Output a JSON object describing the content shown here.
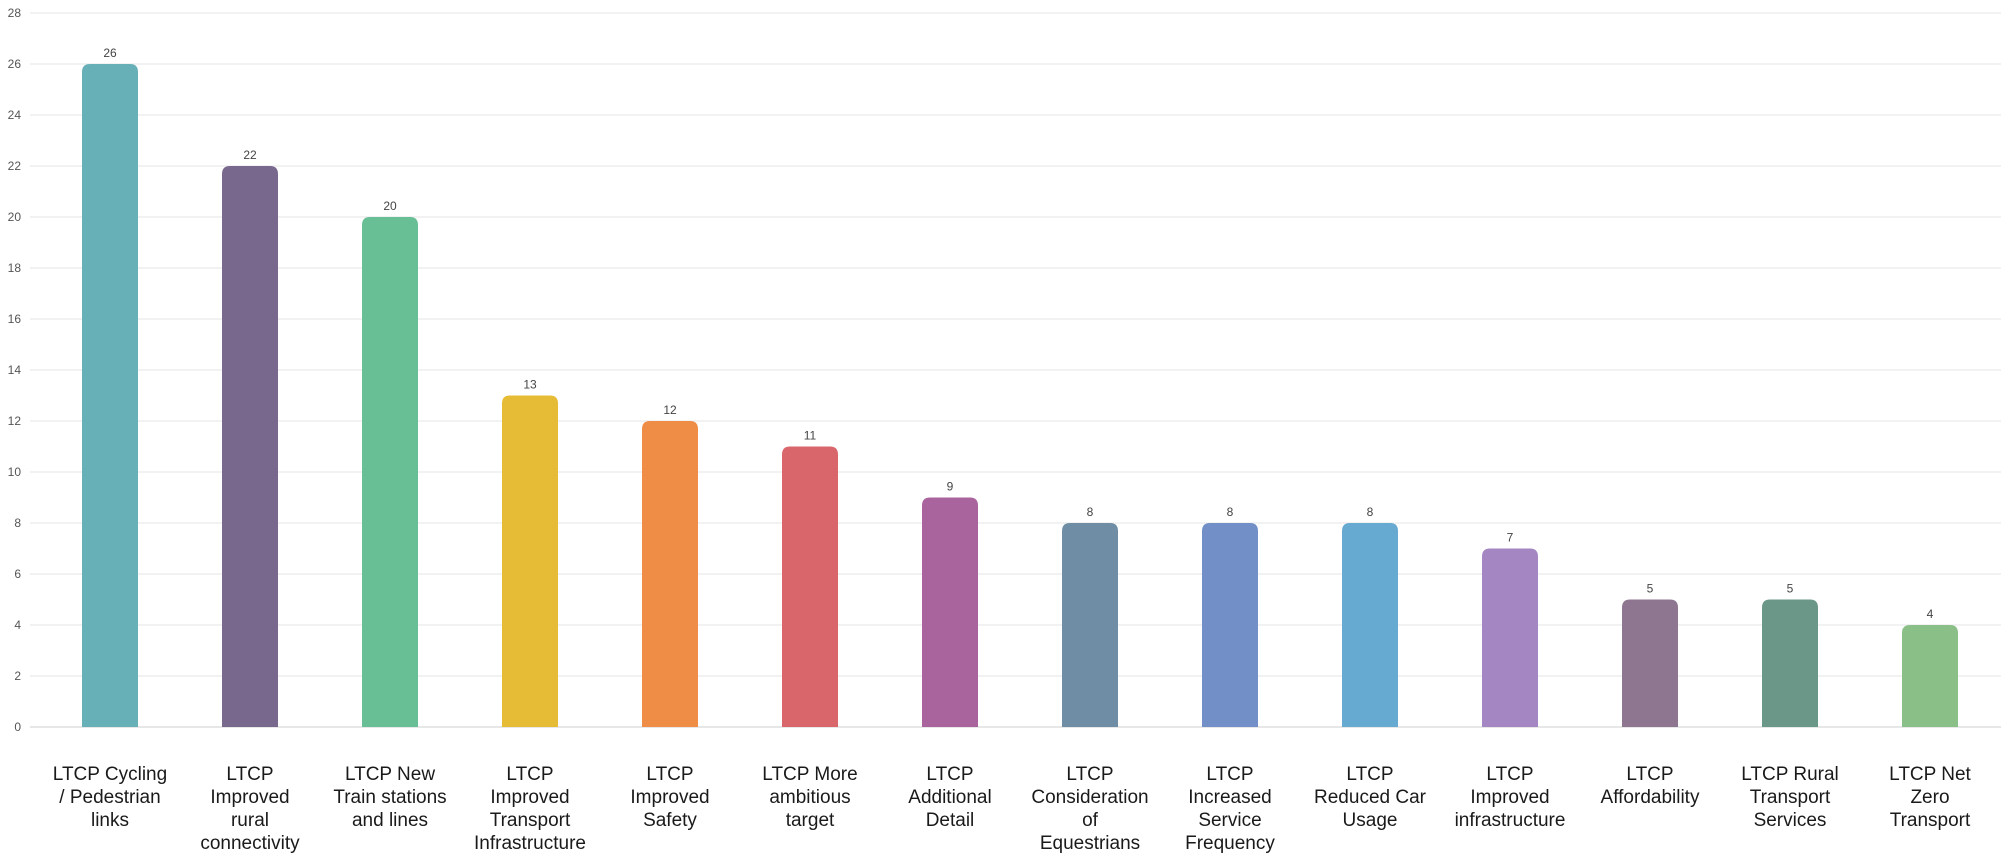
{
  "chart_data": {
    "type": "bar",
    "title": "",
    "xlabel": "",
    "ylabel": "",
    "ylim": [
      0,
      28
    ],
    "yticks": [
      0,
      2,
      4,
      6,
      8,
      10,
      12,
      14,
      16,
      18,
      20,
      22,
      24,
      26,
      28
    ],
    "grid": true,
    "legend": "none",
    "categories": [
      [
        "LTCP Cycling",
        "/ Pedestrian",
        "links"
      ],
      [
        "LTCP",
        "Improved",
        "rural",
        "connectivity"
      ],
      [
        "LTCP New",
        "Train stations",
        "and lines"
      ],
      [
        "LTCP",
        "Improved",
        "Transport",
        "Infrastructure"
      ],
      [
        "LTCP",
        "Improved",
        "Safety"
      ],
      [
        "LTCP More",
        "ambitious",
        "target"
      ],
      [
        "LTCP",
        "Additional",
        "Detail"
      ],
      [
        "LTCP",
        "Consideration",
        "of",
        "Equestrians"
      ],
      [
        "LTCP",
        "Increased",
        "Service",
        "Frequency"
      ],
      [
        "LTCP",
        "Reduced Car",
        "Usage"
      ],
      [
        "LTCP",
        "Improved",
        "infrastructure"
      ],
      [
        "LTCP",
        "Affordability"
      ],
      [
        "LTCP Rural",
        "Transport",
        "Services"
      ],
      [
        "LTCP Net",
        "Zero",
        "Transport"
      ]
    ],
    "values": [
      26,
      22,
      20,
      13,
      12,
      11,
      9,
      8,
      8,
      8,
      7,
      5,
      5,
      4
    ],
    "colors": [
      "#67b0b8",
      "#79688e",
      "#68bf96",
      "#e6bb36",
      "#ef8c45",
      "#d9666b",
      "#a9649e",
      "#6f8ea5",
      "#7290c7",
      "#66a9d1",
      "#a386c2",
      "#8e7690",
      "#6a9788",
      "#8ac088"
    ]
  }
}
